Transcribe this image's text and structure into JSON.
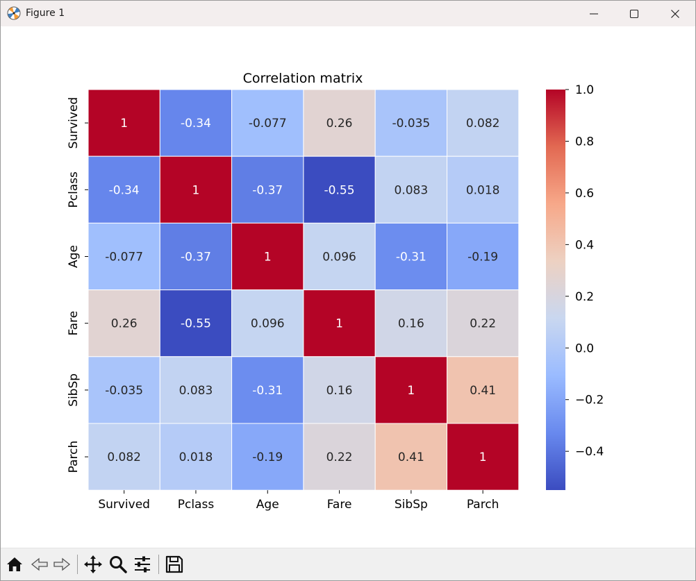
{
  "window": {
    "title": "Figure 1",
    "controls": [
      "minimize",
      "maximize",
      "close"
    ]
  },
  "toolbar": {
    "buttons": [
      {
        "name": "home",
        "icon": "home-icon"
      },
      {
        "name": "back",
        "icon": "back-arrow-icon"
      },
      {
        "name": "forward",
        "icon": "forward-arrow-icon"
      },
      {
        "name": "pan",
        "icon": "move-icon"
      },
      {
        "name": "zoom",
        "icon": "magnifier-icon"
      },
      {
        "name": "configure-subplots",
        "icon": "sliders-icon"
      },
      {
        "name": "save",
        "icon": "floppy-disk-icon"
      }
    ]
  },
  "chart_data": {
    "type": "heatmap",
    "title": "Correlation matrix",
    "x_labels": [
      "Survived",
      "Pclass",
      "Age",
      "Fare",
      "SibSp",
      "Parch"
    ],
    "y_labels": [
      "Survived",
      "Pclass",
      "Age",
      "Fare",
      "SibSp",
      "Parch"
    ],
    "values": [
      [
        1,
        -0.34,
        -0.077,
        0.26,
        -0.035,
        0.082
      ],
      [
        -0.34,
        1,
        -0.37,
        -0.55,
        0.083,
        0.018
      ],
      [
        -0.077,
        -0.37,
        1,
        0.096,
        -0.31,
        -0.19
      ],
      [
        0.26,
        -0.55,
        0.096,
        1,
        0.16,
        0.22
      ],
      [
        -0.035,
        0.083,
        -0.31,
        0.16,
        1,
        0.41
      ],
      [
        0.082,
        0.018,
        -0.19,
        0.22,
        0.41,
        1
      ]
    ],
    "annotations": [
      [
        "1",
        "-0.34",
        "-0.077",
        "0.26",
        "-0.035",
        "0.082"
      ],
      [
        "-0.34",
        "1",
        "-0.37",
        "-0.55",
        "0.083",
        "0.018"
      ],
      [
        "-0.077",
        "-0.37",
        "1",
        "0.096",
        "-0.31",
        "-0.19"
      ],
      [
        "0.26",
        "-0.55",
        "0.096",
        "1",
        "0.16",
        "0.22"
      ],
      [
        "-0.035",
        "0.083",
        "-0.31",
        "0.16",
        "1",
        "0.41"
      ],
      [
        "0.082",
        "0.018",
        "-0.19",
        "0.22",
        "0.41",
        "1"
      ]
    ],
    "colormap": "coolwarm",
    "vmin": -0.55,
    "vmax": 1.0,
    "colorbar_ticks": [
      1.0,
      0.8,
      0.6,
      0.4,
      0.2,
      0.0,
      -0.2,
      -0.4
    ],
    "colorbar_tick_labels": [
      "1.0",
      "0.8",
      "0.6",
      "0.4",
      "0.2",
      "0.0",
      "−0.2",
      "−0.4"
    ],
    "colors": {
      "coolwarm_stops": [
        "#3b4cc0",
        "#6889ee",
        "#9abbff",
        "#c9d7f0",
        "#edd1c2",
        "#f7a889",
        "#e26952",
        "#b40426"
      ],
      "cell_border": "#ffffff"
    }
  }
}
